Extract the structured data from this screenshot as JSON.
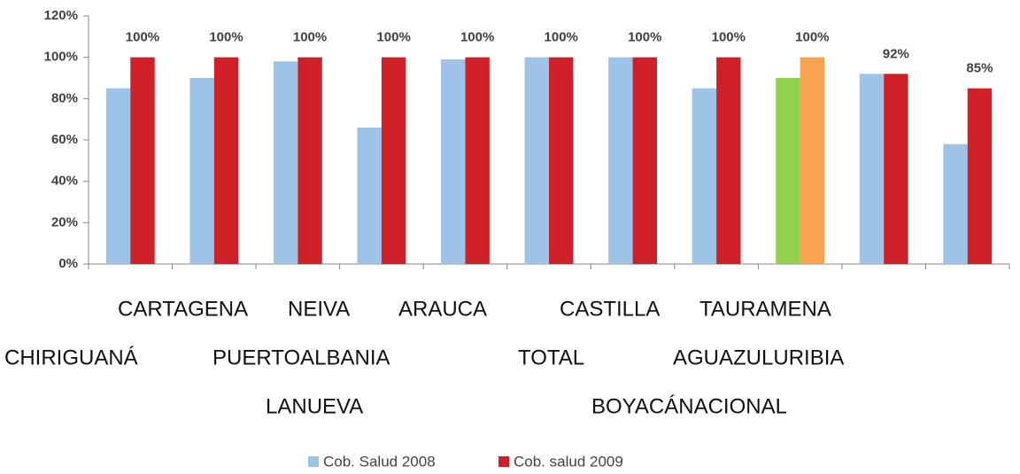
{
  "chart_data": {
    "type": "bar",
    "categories": [
      null,
      null,
      null,
      null,
      null,
      null,
      null,
      null,
      null,
      null,
      null
    ],
    "x_label_rows": [
      [
        "CARTAGENA",
        "NEIVA",
        "ARAUCA",
        "CASTILLA",
        "TAURAMENA"
      ],
      [
        "CHIRIGUANÁ",
        "PUERTOALBANIA",
        "TOTAL",
        "AGUAZULURIBIA"
      ],
      [
        "LANUEVA",
        "BOYACÁNACIONAL"
      ]
    ],
    "series": [
      {
        "name": "Cob. Salud 2008",
        "color": "#9dc3e6",
        "colors": [
          "#9dc3e6",
          "#9dc3e6",
          "#9dc3e6",
          "#9dc3e6",
          "#9dc3e6",
          "#9dc3e6",
          "#9dc3e6",
          "#9dc3e6",
          "#92d050",
          "#9dc3e6",
          "#9dc3e6"
        ],
        "values": [
          85,
          90,
          98,
          66,
          99,
          100,
          100,
          85,
          90,
          92,
          58
        ]
      },
      {
        "name": "Cob. salud 2009",
        "color": "#d02027",
        "colors": [
          "#d02027",
          "#d02027",
          "#d02027",
          "#d02027",
          "#d02027",
          "#d02027",
          "#d02027",
          "#d02027",
          "#f9a350",
          "#d02027",
          "#d02027"
        ],
        "values": [
          100,
          100,
          100,
          100,
          100,
          100,
          100,
          100,
          100,
          92,
          85
        ],
        "value_labels": [
          "100%",
          "100%",
          "100%",
          "100%",
          "100%",
          "100%",
          "100%",
          "100%",
          "100%",
          "92%",
          "85%"
        ]
      }
    ],
    "ylim": [
      0,
      120
    ],
    "yticks": [
      {
        "value": 0,
        "label": "0%"
      },
      {
        "value": 20,
        "label": "20%"
      },
      {
        "value": 40,
        "label": "40%"
      },
      {
        "value": 60,
        "label": "60%"
      },
      {
        "value": 80,
        "label": "80%"
      },
      {
        "value": 100,
        "label": "100%"
      },
      {
        "value": 120,
        "label": "120%"
      }
    ],
    "legend": "bottom"
  }
}
